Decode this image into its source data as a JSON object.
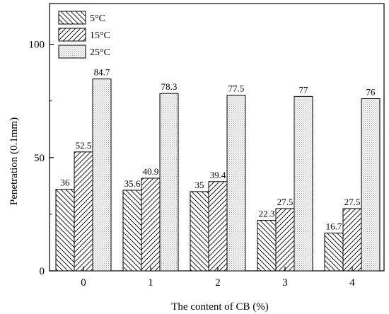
{
  "chart_data": {
    "type": "bar",
    "xlabel": "The content of CB (%)",
    "ylabel": "Penetration (0.1mm)",
    "categories": [
      "0",
      "1",
      "2",
      "3",
      "4"
    ],
    "ylim": [
      0,
      118
    ],
    "yticks": [
      0,
      50,
      100
    ],
    "grid": false,
    "legend_position": "top-left",
    "series": [
      {
        "name": "5°C",
        "pattern": "backslash-hatch",
        "values": [
          36,
          35.6,
          35,
          22.3,
          16.7
        ]
      },
      {
        "name": "15°C",
        "pattern": "slash-hatch",
        "values": [
          52.5,
          40.9,
          39.4,
          27.5,
          27.5
        ]
      },
      {
        "name": "25°C",
        "pattern": "dotted",
        "values": [
          84.7,
          78.3,
          77.5,
          77,
          76
        ]
      }
    ],
    "data_labels": [
      [
        "36",
        "35.6",
        "35",
        "22.3",
        "16.7"
      ],
      [
        "52.5",
        "40.9",
        "39.4",
        "27.5",
        "27.5"
      ],
      [
        "84.7",
        "78.3",
        "77.5",
        "77",
        "76"
      ]
    ]
  }
}
